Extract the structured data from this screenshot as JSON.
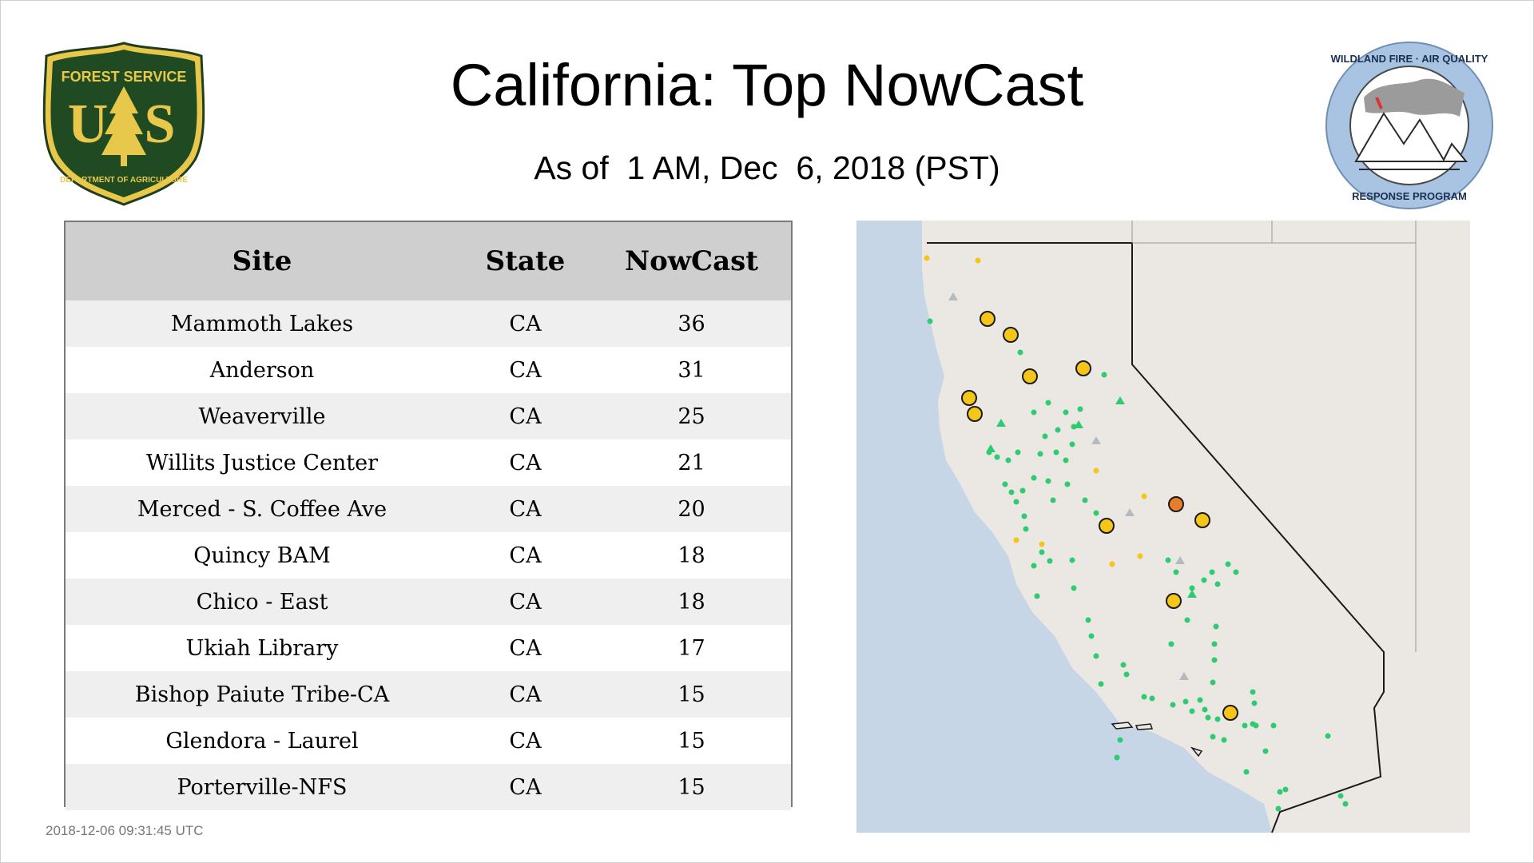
{
  "header": {
    "title": "California: Top NowCast",
    "subtitle": "As of  1 AM, Dec  6, 2018 (PST)"
  },
  "logos": {
    "left": {
      "icon": "usfs-shield-logo",
      "text_top": "FOREST SERVICE",
      "text_letters": "US",
      "text_bottom": "DEPARTMENT OF AGRICULTURE"
    },
    "right": {
      "icon": "wildland-fire-air-quality-logo",
      "text_top": "WILDLAND FIRE · AIR QUALITY",
      "text_bottom": "RESPONSE PROGRAM"
    }
  },
  "table": {
    "headers": [
      "Site",
      "State",
      "NowCast"
    ],
    "rows": [
      {
        "site": "Mammoth Lakes",
        "state": "CA",
        "nowcast": "36"
      },
      {
        "site": "Anderson",
        "state": "CA",
        "nowcast": "31"
      },
      {
        "site": "Weaverville",
        "state": "CA",
        "nowcast": "25"
      },
      {
        "site": "Willits Justice Center",
        "state": "CA",
        "nowcast": "21"
      },
      {
        "site": "Merced - S. Coffee Ave",
        "state": "CA",
        "nowcast": "20"
      },
      {
        "site": "Quincy BAM",
        "state": "CA",
        "nowcast": "18"
      },
      {
        "site": "Chico - East",
        "state": "CA",
        "nowcast": "18"
      },
      {
        "site": "Ukiah Library",
        "state": "CA",
        "nowcast": "17"
      },
      {
        "site": "Bishop Paiute Tribe-CA",
        "state": "CA",
        "nowcast": "15"
      },
      {
        "site": "Glendora - Laurel",
        "state": "CA",
        "nowcast": "15"
      },
      {
        "site": "Porterville-NFS",
        "state": "CA",
        "nowcast": "15"
      }
    ]
  },
  "footer": {
    "timestamp": "2018-12-06 09:31:45 UTC"
  },
  "map": {
    "colors": {
      "ocean": "#c6d6e6",
      "land": "#ebe7e3",
      "good": "#2ecc71",
      "moderate": "#f5c518",
      "usg": "#e87d2b",
      "inactive": "#b5b9c0"
    }
  }
}
